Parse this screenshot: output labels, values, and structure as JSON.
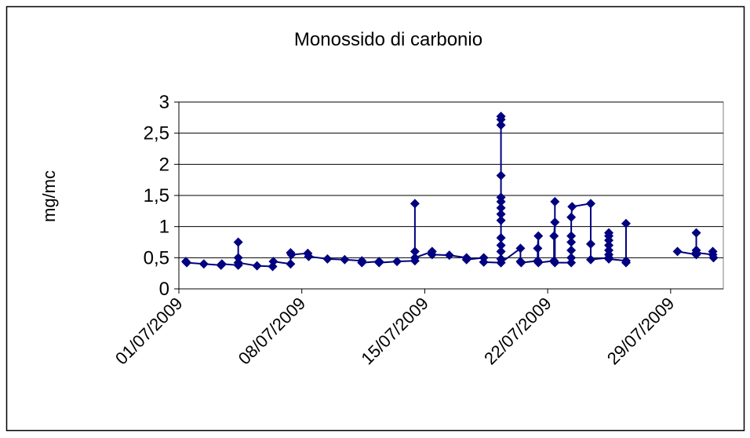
{
  "chart_data": {
    "type": "line",
    "title": "Monossido di carbonio",
    "y_label": "mg/mc",
    "xlim": [
      1,
      32
    ],
    "xticks": [
      {
        "value": 1,
        "label": "01/07/2009"
      },
      {
        "value": 8,
        "label": "08/07/2009"
      },
      {
        "value": 15,
        "label": "15/07/2009"
      },
      {
        "value": 22,
        "label": "22/07/2009"
      },
      {
        "value": 29,
        "label": "29/07/2009"
      }
    ],
    "ylim": [
      0,
      3
    ],
    "yticks": [
      0,
      {
        "value": 0.5,
        "label": "0,5"
      },
      1,
      {
        "value": 1.5,
        "label": "1,5"
      },
      2,
      {
        "value": 2.5,
        "label": "2,5"
      },
      3
    ],
    "grid": true,
    "series": [
      {
        "color": "#000080",
        "x": [
          1.4,
          1.45,
          2.42,
          3.4,
          3.45,
          4.38,
          4.38,
          4.38,
          4.38,
          5.45,
          6.34,
          6.38,
          7.36,
          7.36,
          7.41,
          8.34,
          8.39,
          9.46,
          10.44,
          11.42,
          11.42,
          12.4,
          12.4,
          13.42,
          14.44,
          14.44,
          14.44,
          14.44,
          15.42,
          15.42,
          16.4,
          17.38,
          17.38,
          18.36,
          18.36,
          19.34,
          19.34,
          19.34,
          19.34,
          19.34,
          19.34,
          19.34,
          19.34,
          19.34,
          19.34,
          19.34,
          19.34,
          19.34,
          19.34,
          19.34,
          20.45,
          20.45,
          20.49,
          21.43,
          21.43,
          21.47,
          21.47,
          22.36,
          22.36,
          22.41,
          22.41,
          22.41,
          23.34,
          23.34,
          23.34,
          23.34,
          23.34,
          23.34,
          23.39,
          24.45,
          24.45,
          24.45,
          25.48,
          25.48,
          25.48,
          25.48,
          25.48,
          25.48,
          25.48,
          25.48,
          26.46,
          26.46,
          26.46,
          null,
          29.39,
          30.46,
          30.46,
          30.46,
          30.46,
          31.4,
          31.4,
          31.44
        ],
        "values": [
          0.44,
          0.42,
          0.4,
          0.38,
          0.4,
          0.38,
          0.5,
          0.75,
          0.42,
          0.37,
          0.36,
          0.44,
          0.4,
          0.58,
          0.55,
          0.57,
          0.52,
          0.48,
          0.47,
          0.45,
          0.42,
          0.44,
          0.42,
          0.44,
          0.45,
          0.6,
          1.37,
          0.5,
          0.6,
          0.55,
          0.54,
          0.5,
          0.47,
          0.5,
          0.43,
          0.42,
          2.77,
          2.72,
          2.63,
          1.82,
          1.47,
          1.4,
          1.3,
          1.2,
          1.1,
          0.82,
          0.7,
          0.6,
          0.48,
          0.42,
          0.65,
          0.44,
          0.42,
          0.45,
          0.65,
          0.85,
          0.42,
          0.45,
          0.85,
          1.07,
          1.4,
          0.42,
          0.42,
          0.5,
          0.62,
          0.75,
          0.85,
          1.15,
          1.32,
          1.37,
          0.72,
          0.47,
          0.5,
          0.55,
          0.62,
          0.7,
          0.78,
          0.85,
          0.9,
          0.48,
          0.45,
          0.42,
          1.05,
          null,
          0.6,
          0.55,
          0.62,
          0.9,
          0.58,
          0.55,
          0.6,
          0.5
        ]
      }
    ]
  }
}
